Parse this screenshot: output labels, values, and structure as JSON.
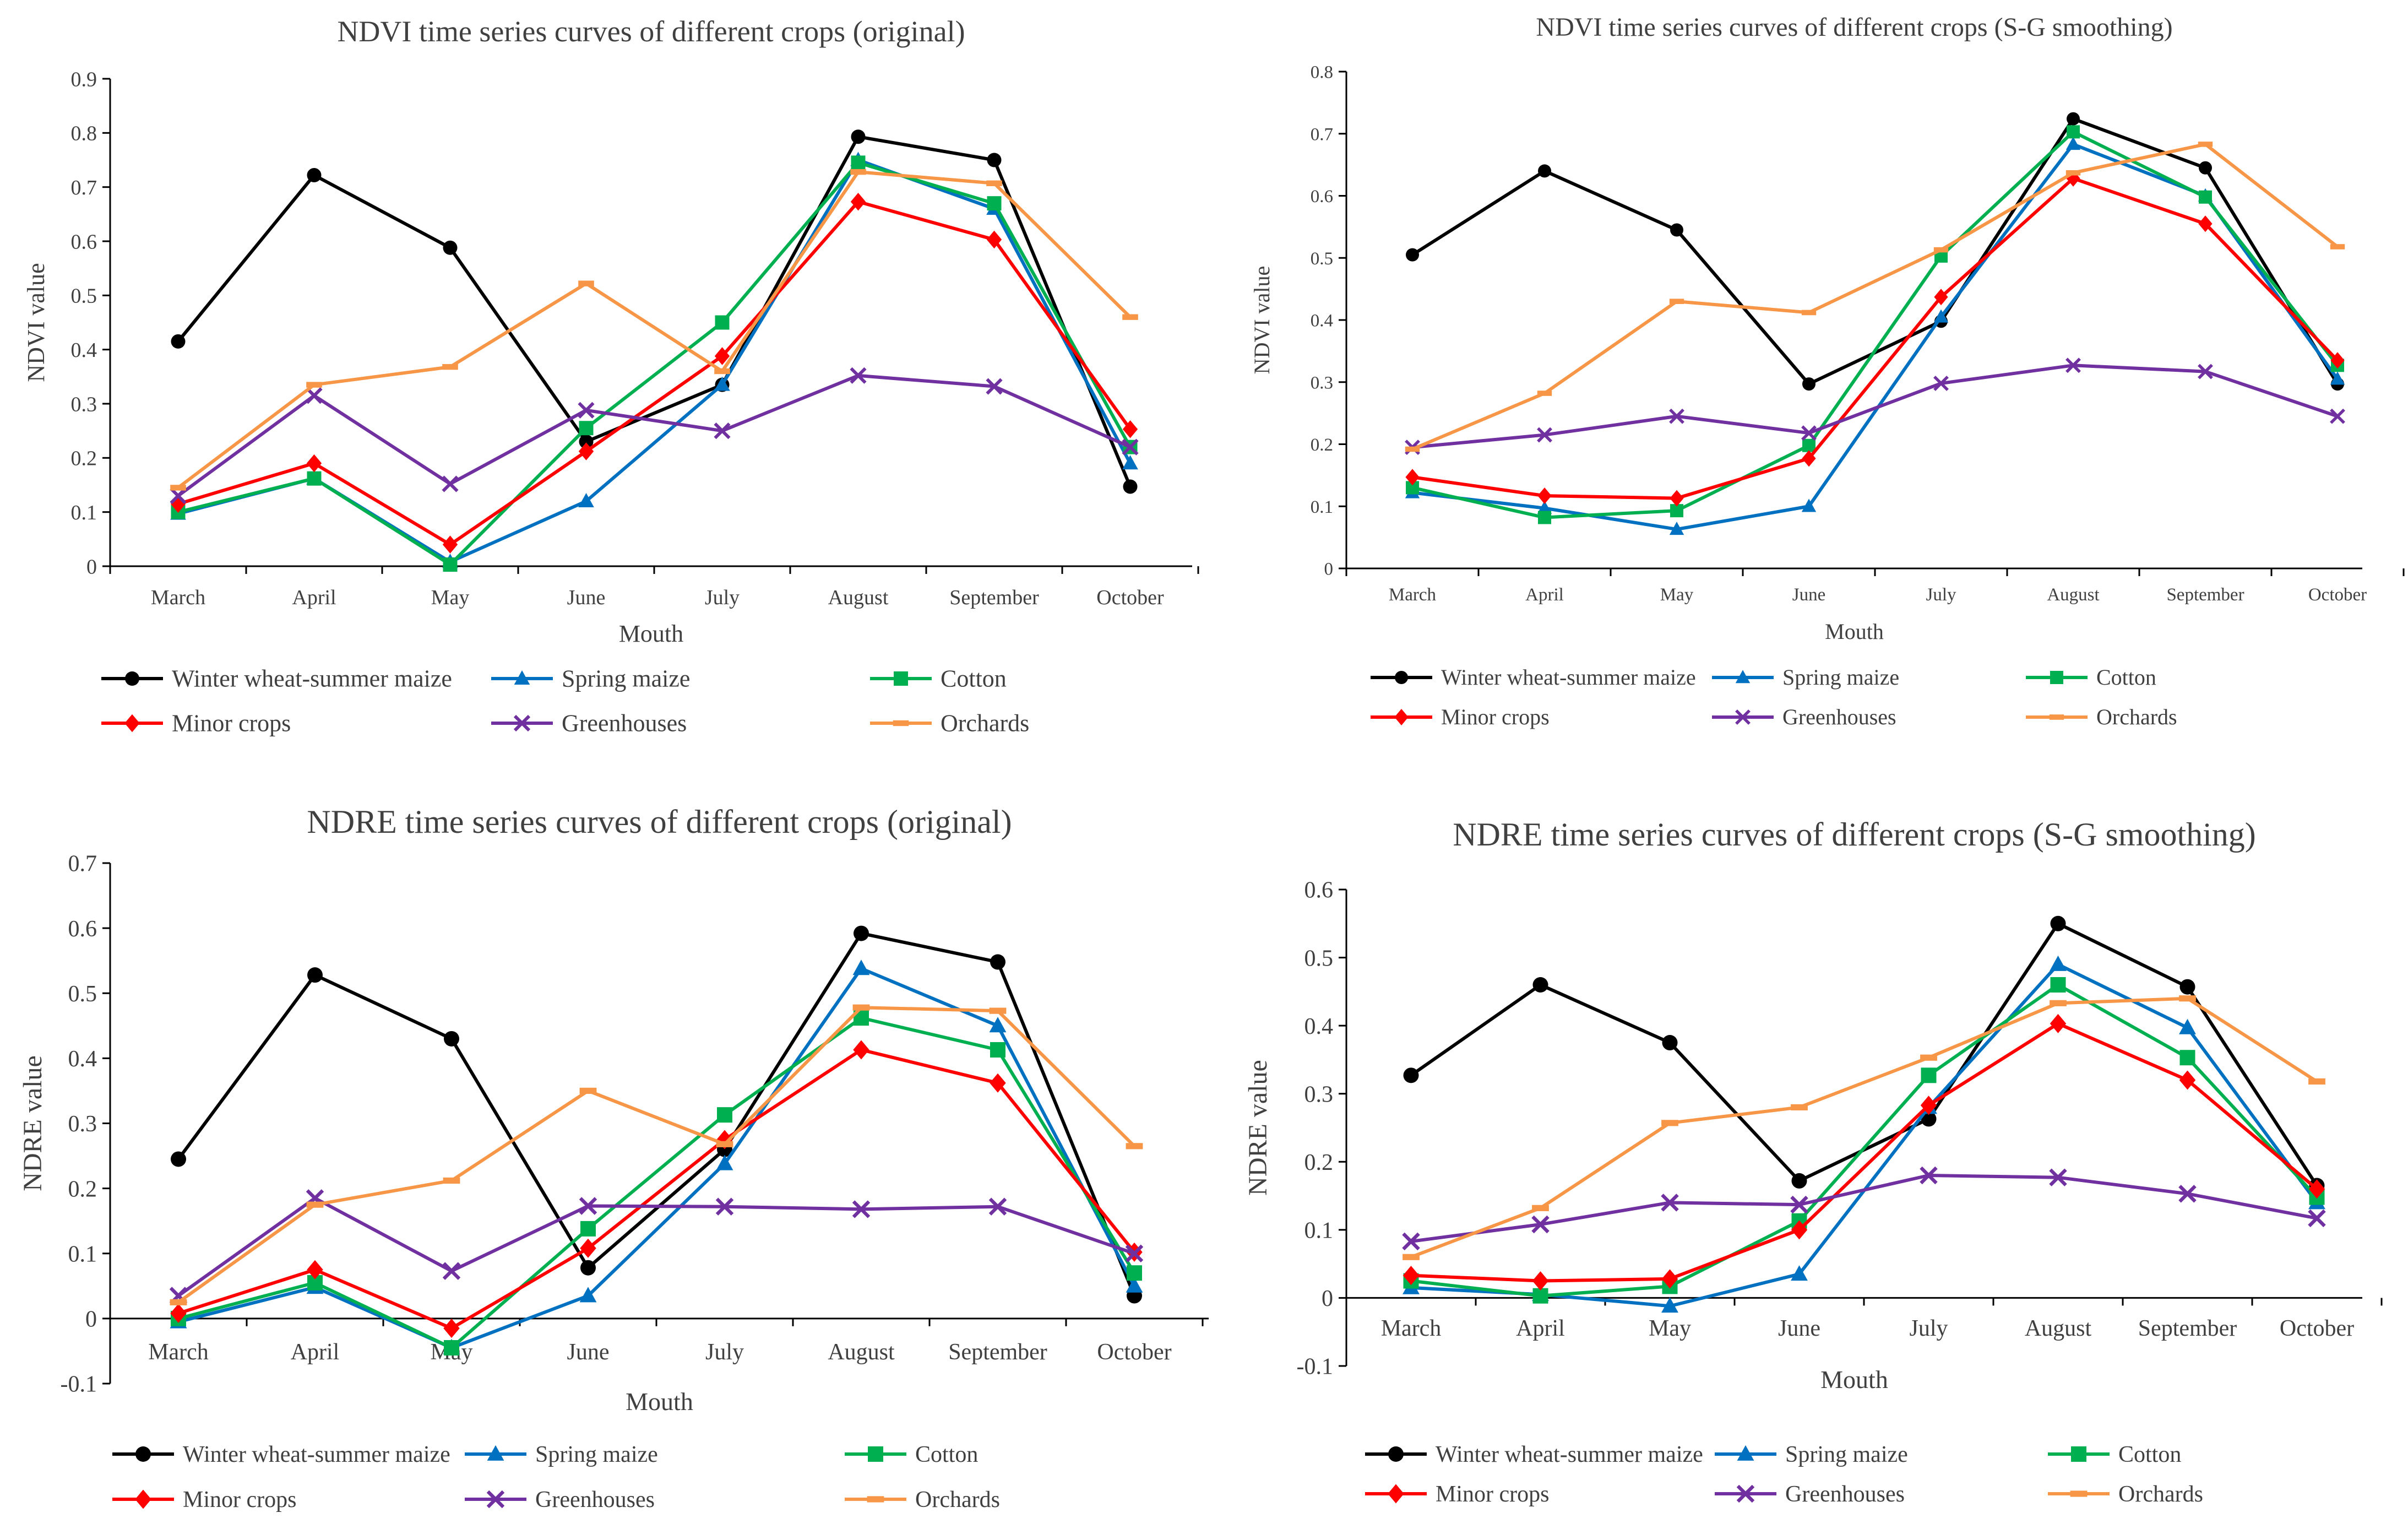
{
  "series_styles": {
    "Winter wheat-summer maize": {
      "color": "#000000",
      "marker": "circle"
    },
    "Spring maize": {
      "color": "#0070c0",
      "marker": "triangle"
    },
    "Cotton": {
      "color": "#00b050",
      "marker": "square"
    },
    "Minor crops": {
      "color": "#ff0000",
      "marker": "diamond"
    },
    "Greenhouses": {
      "color": "#7030a0",
      "marker": "x"
    },
    "Orchards": {
      "color": "#f79646",
      "marker": "dash"
    }
  },
  "chart_data": [
    {
      "type": "line",
      "title": "NDVI time series curves of different crops (original)",
      "xlabel": "Mouth",
      "ylabel": "NDVI value",
      "ylim": [
        0,
        0.9
      ],
      "yticks": [
        "0",
        "0.1",
        "0.2",
        "0.3",
        "0.4",
        "0.5",
        "0.6",
        "0.7",
        "0.8",
        "0.9"
      ],
      "categories": [
        "March",
        "April",
        "May",
        "June",
        "July",
        "August",
        "September",
        "October"
      ],
      "series": [
        {
          "name": "Winter wheat-summer maize",
          "values": [
            0.415,
            0.722,
            0.588,
            0.23,
            0.335,
            0.793,
            0.75,
            0.147
          ]
        },
        {
          "name": "Spring maize",
          "values": [
            0.097,
            0.162,
            0.008,
            0.12,
            0.335,
            0.75,
            0.66,
            0.19
          ]
        },
        {
          "name": "Cotton",
          "values": [
            0.1,
            0.162,
            0.003,
            0.255,
            0.45,
            0.745,
            0.67,
            0.22
          ]
        },
        {
          "name": "Minor crops",
          "values": [
            0.115,
            0.19,
            0.04,
            0.212,
            0.388,
            0.673,
            0.603,
            0.253
          ]
        },
        {
          "name": "Greenhouses",
          "values": [
            0.13,
            0.315,
            0.152,
            0.288,
            0.25,
            0.352,
            0.332,
            0.22
          ]
        },
        {
          "name": "Orchards",
          "values": [
            0.145,
            0.335,
            0.368,
            0.522,
            0.36,
            0.728,
            0.707,
            0.46
          ]
        }
      ]
    },
    {
      "type": "line",
      "title": "NDVI time series curves of different crops (S-G smoothing)",
      "xlabel": "Mouth",
      "ylabel": "NDVI value",
      "ylim": [
        0,
        0.8
      ],
      "yticks": [
        "0",
        "0.1",
        "0.2",
        "0.3",
        "0.4",
        "0.5",
        "0.6",
        "0.7",
        "0.8"
      ],
      "categories": [
        "March",
        "April",
        "May",
        "June",
        "July",
        "August",
        "September",
        "October"
      ],
      "series": [
        {
          "name": "Winter wheat-summer maize",
          "values": [
            0.505,
            0.64,
            0.545,
            0.297,
            0.398,
            0.724,
            0.645,
            0.297
          ]
        },
        {
          "name": "Spring maize",
          "values": [
            0.122,
            0.097,
            0.063,
            0.1,
            0.405,
            0.683,
            0.6,
            0.305
          ]
        },
        {
          "name": "Cotton",
          "values": [
            0.13,
            0.082,
            0.093,
            0.198,
            0.503,
            0.703,
            0.598,
            0.327
          ]
        },
        {
          "name": "Minor crops",
          "values": [
            0.147,
            0.117,
            0.113,
            0.177,
            0.437,
            0.628,
            0.555,
            0.335
          ]
        },
        {
          "name": "Greenhouses",
          "values": [
            0.195,
            0.215,
            0.245,
            0.218,
            0.298,
            0.327,
            0.317,
            0.245
          ]
        },
        {
          "name": "Orchards",
          "values": [
            0.192,
            0.282,
            0.43,
            0.412,
            0.513,
            0.637,
            0.683,
            0.518
          ]
        }
      ]
    },
    {
      "type": "line",
      "title": "NDRE time series curves of different crops (original)",
      "xlabel": "Mouth",
      "ylabel": "NDRE value",
      "ylim": [
        -0.1,
        0.7
      ],
      "yticks": [
        "-0.1",
        "0",
        "0.1",
        "0.2",
        "0.3",
        "0.4",
        "0.5",
        "0.6",
        "0.7"
      ],
      "categories": [
        "March",
        "April",
        "May",
        "June",
        "July",
        "August",
        "September",
        "October"
      ],
      "series": [
        {
          "name": "Winter wheat-summer maize",
          "values": [
            0.245,
            0.528,
            0.43,
            0.078,
            0.26,
            0.592,
            0.548,
            0.035
          ]
        },
        {
          "name": "Spring maize",
          "values": [
            -0.005,
            0.048,
            -0.045,
            0.035,
            0.238,
            0.538,
            0.45,
            0.05
          ]
        },
        {
          "name": "Cotton",
          "values": [
            0.0,
            0.055,
            -0.045,
            0.138,
            0.313,
            0.462,
            0.413,
            0.07
          ]
        },
        {
          "name": "Minor crops",
          "values": [
            0.008,
            0.075,
            -0.015,
            0.108,
            0.275,
            0.413,
            0.362,
            0.102
          ]
        },
        {
          "name": "Greenhouses",
          "values": [
            0.035,
            0.185,
            0.073,
            0.173,
            0.172,
            0.168,
            0.172,
            0.1
          ]
        },
        {
          "name": "Orchards",
          "values": [
            0.025,
            0.175,
            0.212,
            0.35,
            0.268,
            0.478,
            0.473,
            0.265
          ]
        }
      ]
    },
    {
      "type": "line",
      "title": "NDRE time series curves of different crops (S-G smoothing)",
      "xlabel": "Mouth",
      "ylabel": "NDRE value",
      "ylim": [
        -0.1,
        0.6
      ],
      "yticks": [
        "-0.1",
        "0",
        "0.1",
        "0.2",
        "0.3",
        "0.4",
        "0.5",
        "0.6"
      ],
      "categories": [
        "March",
        "April",
        "May",
        "June",
        "July",
        "August",
        "September",
        "October"
      ],
      "series": [
        {
          "name": "Winter wheat-summer maize",
          "values": [
            0.327,
            0.46,
            0.375,
            0.172,
            0.263,
            0.55,
            0.457,
            0.165
          ]
        },
        {
          "name": "Spring maize",
          "values": [
            0.015,
            0.005,
            -0.012,
            0.035,
            0.28,
            0.49,
            0.397,
            0.14
          ]
        },
        {
          "name": "Cotton",
          "values": [
            0.025,
            0.003,
            0.017,
            0.113,
            0.327,
            0.46,
            0.353,
            0.148
          ]
        },
        {
          "name": "Minor crops",
          "values": [
            0.033,
            0.025,
            0.028,
            0.1,
            0.283,
            0.403,
            0.32,
            0.16
          ]
        },
        {
          "name": "Greenhouses",
          "values": [
            0.083,
            0.108,
            0.14,
            0.137,
            0.18,
            0.177,
            0.153,
            0.117
          ]
        },
        {
          "name": "Orchards",
          "values": [
            0.06,
            0.132,
            0.257,
            0.28,
            0.353,
            0.433,
            0.44,
            0.318
          ]
        }
      ]
    }
  ]
}
